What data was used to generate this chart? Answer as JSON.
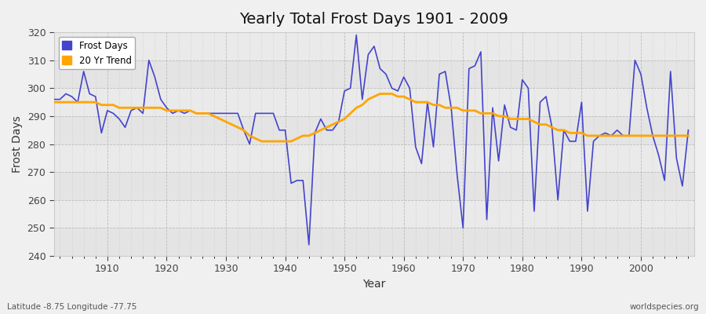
{
  "title": "Yearly Total Frost Days 1901 - 2009",
  "xlabel": "Year",
  "ylabel": "Frost Days",
  "xlim": [
    1901,
    2009
  ],
  "ylim": [
    240,
    320
  ],
  "yticks": [
    240,
    250,
    260,
    270,
    280,
    290,
    300,
    310,
    320
  ],
  "xticks": [
    1910,
    1920,
    1930,
    1940,
    1950,
    1960,
    1970,
    1980,
    1990,
    2000
  ],
  "bg_color": "#f0f0f0",
  "plot_bg_color": "#eaeaea",
  "line_color": "#4444cc",
  "trend_color": "#ffa500",
  "subtitle_left": "Latitude -8.75 Longitude -77.75",
  "subtitle_right": "worldspecies.org",
  "frost_days": {
    "1901": 296,
    "1902": 296,
    "1903": 298,
    "1904": 297,
    "1905": 295,
    "1906": 306,
    "1907": 298,
    "1908": 297,
    "1909": 284,
    "1910": 292,
    "1911": 291,
    "1912": 289,
    "1913": 286,
    "1914": 292,
    "1915": 293,
    "1916": 291,
    "1917": 310,
    "1918": 304,
    "1919": 296,
    "1920": 293,
    "1921": 291,
    "1922": 292,
    "1923": 291,
    "1924": 292,
    "1925": 291,
    "1926": 291,
    "1927": 291,
    "1928": 291,
    "1929": 291,
    "1930": 291,
    "1931": 291,
    "1932": 291,
    "1933": 285,
    "1934": 280,
    "1935": 291,
    "1936": 291,
    "1937": 291,
    "1938": 291,
    "1939": 285,
    "1940": 285,
    "1941": 266,
    "1942": 267,
    "1943": 267,
    "1944": 244,
    "1945": 284,
    "1946": 289,
    "1947": 285,
    "1948": 285,
    "1949": 288,
    "1950": 299,
    "1951": 300,
    "1952": 319,
    "1953": 296,
    "1954": 312,
    "1955": 315,
    "1956": 307,
    "1957": 305,
    "1958": 300,
    "1959": 299,
    "1960": 304,
    "1961": 300,
    "1962": 279,
    "1963": 273,
    "1964": 295,
    "1965": 279,
    "1966": 305,
    "1967": 306,
    "1968": 293,
    "1969": 269,
    "1970": 250,
    "1971": 307,
    "1972": 308,
    "1973": 313,
    "1974": 253,
    "1975": 293,
    "1976": 274,
    "1977": 294,
    "1978": 286,
    "1979": 285,
    "1980": 303,
    "1981": 300,
    "1982": 256,
    "1983": 295,
    "1984": 297,
    "1985": 286,
    "1986": 260,
    "1987": 285,
    "1988": 281,
    "1989": 281,
    "1990": 295,
    "1991": 256,
    "1992": 281,
    "1993": 283,
    "1994": 284,
    "1995": 283,
    "1996": 285,
    "1997": 283,
    "1998": 283,
    "1999": 310,
    "2000": 305,
    "2001": 293,
    "2002": 283,
    "2003": 276,
    "2004": 267,
    "2005": 306,
    "2006": 275,
    "2007": 265,
    "2008": 285
  },
  "trend_20yr": {
    "1901": 295,
    "1902": 295,
    "1903": 295,
    "1904": 295,
    "1905": 295,
    "1906": 295,
    "1907": 295,
    "1908": 295,
    "1909": 294,
    "1910": 294,
    "1911": 294,
    "1912": 293,
    "1913": 293,
    "1914": 293,
    "1915": 293,
    "1916": 293,
    "1917": 293,
    "1918": 293,
    "1919": 293,
    "1920": 292,
    "1921": 292,
    "1922": 292,
    "1923": 292,
    "1924": 292,
    "1925": 291,
    "1926": 291,
    "1927": 291,
    "1928": 290,
    "1929": 289,
    "1930": 288,
    "1931": 287,
    "1932": 286,
    "1933": 285,
    "1934": 283,
    "1935": 282,
    "1936": 281,
    "1937": 281,
    "1938": 281,
    "1939": 281,
    "1940": 281,
    "1941": 281,
    "1942": 282,
    "1943": 283,
    "1944": 283,
    "1945": 284,
    "1946": 285,
    "1947": 286,
    "1948": 287,
    "1949": 288,
    "1950": 289,
    "1951": 291,
    "1952": 293,
    "1953": 294,
    "1954": 296,
    "1955": 297,
    "1956": 298,
    "1957": 298,
    "1958": 298,
    "1959": 297,
    "1960": 297,
    "1961": 296,
    "1962": 295,
    "1963": 295,
    "1964": 295,
    "1965": 294,
    "1966": 294,
    "1967": 293,
    "1968": 293,
    "1969": 293,
    "1970": 292,
    "1971": 292,
    "1972": 292,
    "1973": 291,
    "1974": 291,
    "1975": 291,
    "1976": 290,
    "1977": 290,
    "1978": 289,
    "1979": 289,
    "1980": 289,
    "1981": 289,
    "1982": 288,
    "1983": 287,
    "1984": 287,
    "1985": 286,
    "1986": 285,
    "1987": 285,
    "1988": 284,
    "1989": 284,
    "1990": 284,
    "1991": 283,
    "1992": 283,
    "1993": 283,
    "1994": 283,
    "1995": 283,
    "1996": 283,
    "1997": 283,
    "1998": 283,
    "1999": 283,
    "2000": 283,
    "2001": 283,
    "2002": 283,
    "2003": 283,
    "2004": 283,
    "2005": 283,
    "2006": 283,
    "2007": 283,
    "2008": 283
  }
}
